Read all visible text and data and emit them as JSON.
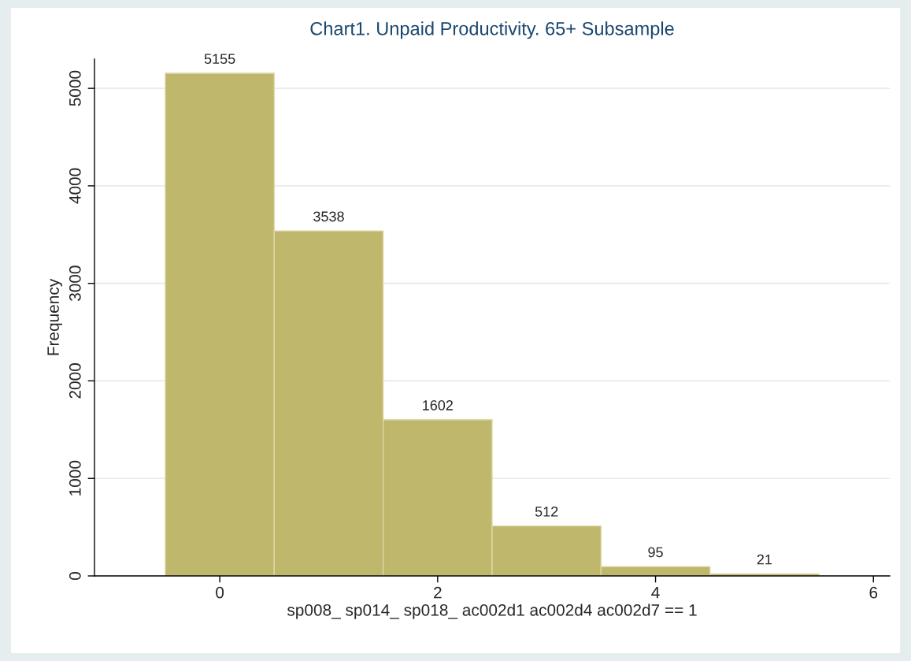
{
  "chart_data": {
    "type": "histogram",
    "title": "Chart1. Unpaid Productivity. 65+ Subsample",
    "xlabel": "sp008_ sp014_ sp018_ ac002d1 ac002d4 ac002d7 == 1",
    "ylabel": "Frequency",
    "bins": [
      -0.5,
      0.5,
      1.5,
      2.5,
      3.5,
      4.5,
      5.5
    ],
    "values": [
      5155,
      3538,
      1602,
      512,
      95,
      21
    ],
    "color": "#bfb76b",
    "data_labels": true,
    "xlim": [
      -1.15,
      6.15
    ],
    "xticks": [
      0,
      2,
      4,
      6
    ],
    "ylim": [
      0,
      5300
    ],
    "yticks": [
      0,
      1000,
      2000,
      3000,
      4000,
      5000
    ],
    "grid": "y",
    "legend": false
  }
}
